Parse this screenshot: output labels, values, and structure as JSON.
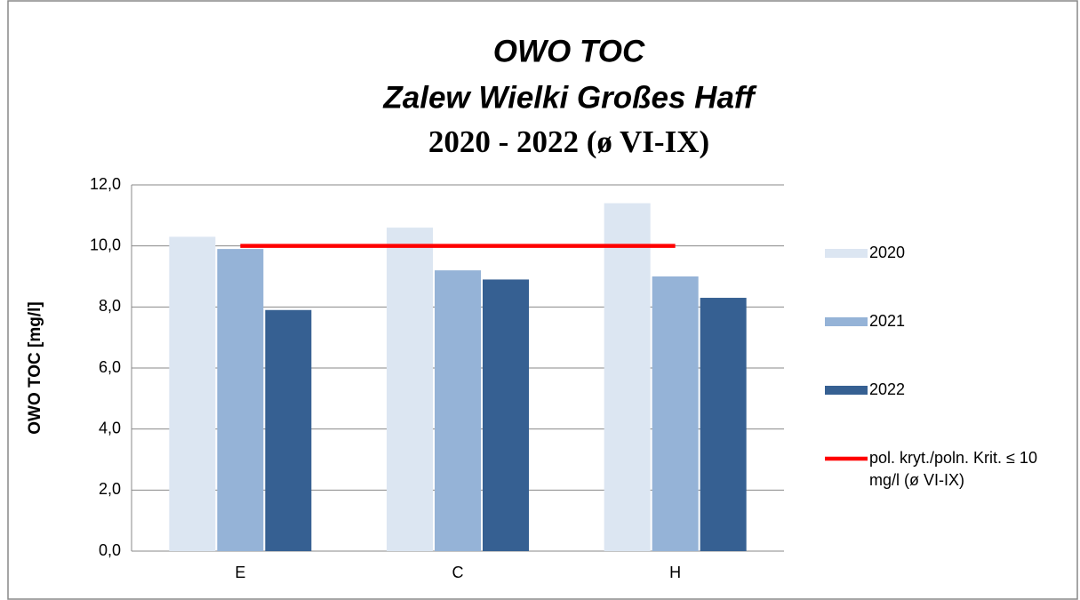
{
  "chart_data": {
    "type": "bar",
    "title": "OWO  TOC",
    "subtitle": "Zalew Wielki  Großes Haff",
    "period": "2020 - 2022 (ø VI-IX)",
    "y_label": "OWO  TOC [mg/l]",
    "categories": [
      "E",
      "C",
      "H"
    ],
    "series": [
      {
        "name": "2020",
        "color": "#dce6f2",
        "values": [
          10.3,
          10.6,
          11.4
        ]
      },
      {
        "name": "2021",
        "color": "#95b3d7",
        "values": [
          9.9,
          9.2,
          9.0
        ]
      },
      {
        "name": "2022",
        "color": "#366092",
        "values": [
          7.9,
          8.9,
          8.3
        ]
      },
      {
        "name": "pol. kryt./poln. Krit. ≤ 10 mg/l (ø VI-IX)",
        "color": "#ff0000",
        "type": "line",
        "values": [
          10,
          10,
          10
        ]
      }
    ],
    "ylim": [
      0,
      12
    ],
    "yticks": [
      {
        "value": 0,
        "label": "0,0"
      },
      {
        "value": 2,
        "label": "2,0"
      },
      {
        "value": 4,
        "label": "4,0"
      },
      {
        "value": 6,
        "label": "6,0"
      },
      {
        "value": 8,
        "label": "8,0"
      },
      {
        "value": 10,
        "label": "10,0"
      },
      {
        "value": 12,
        "label": "12,0"
      }
    ],
    "grid": true,
    "legend": "right"
  }
}
